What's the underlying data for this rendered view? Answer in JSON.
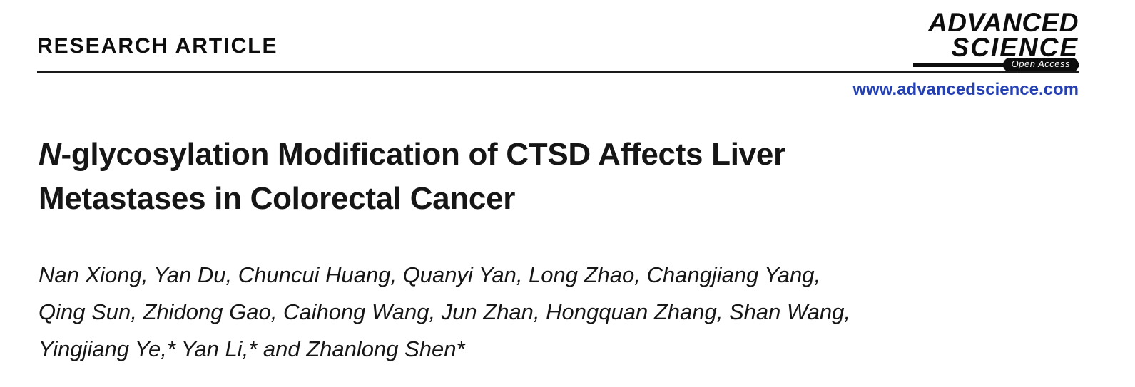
{
  "header": {
    "article_type": "RESEARCH ARTICLE",
    "logo": {
      "line1": "ADVANCED",
      "line2": "SCIENCE",
      "open_access": "Open Access"
    },
    "website": "www.advancedscience.com"
  },
  "article": {
    "title": {
      "italic_lead": "N",
      "line1_rest": "-glycosylation Modification of CTSD Affects Liver",
      "line2": "Metastases in Colorectal Cancer"
    },
    "authors": [
      "Nan Xiong, Yan Du, Chuncui Huang, Quanyi Yan, Long Zhao, Changjiang Yang,",
      "Qing Sun, Zhidong Gao, Caihong Wang, Jun Zhan, Hongquan Zhang, Shan Wang,",
      "Yingjiang Ye,* Yan Li,* and Zhanlong Shen*"
    ]
  },
  "colors": {
    "link_blue": "#2440b3",
    "text": "#161616"
  }
}
